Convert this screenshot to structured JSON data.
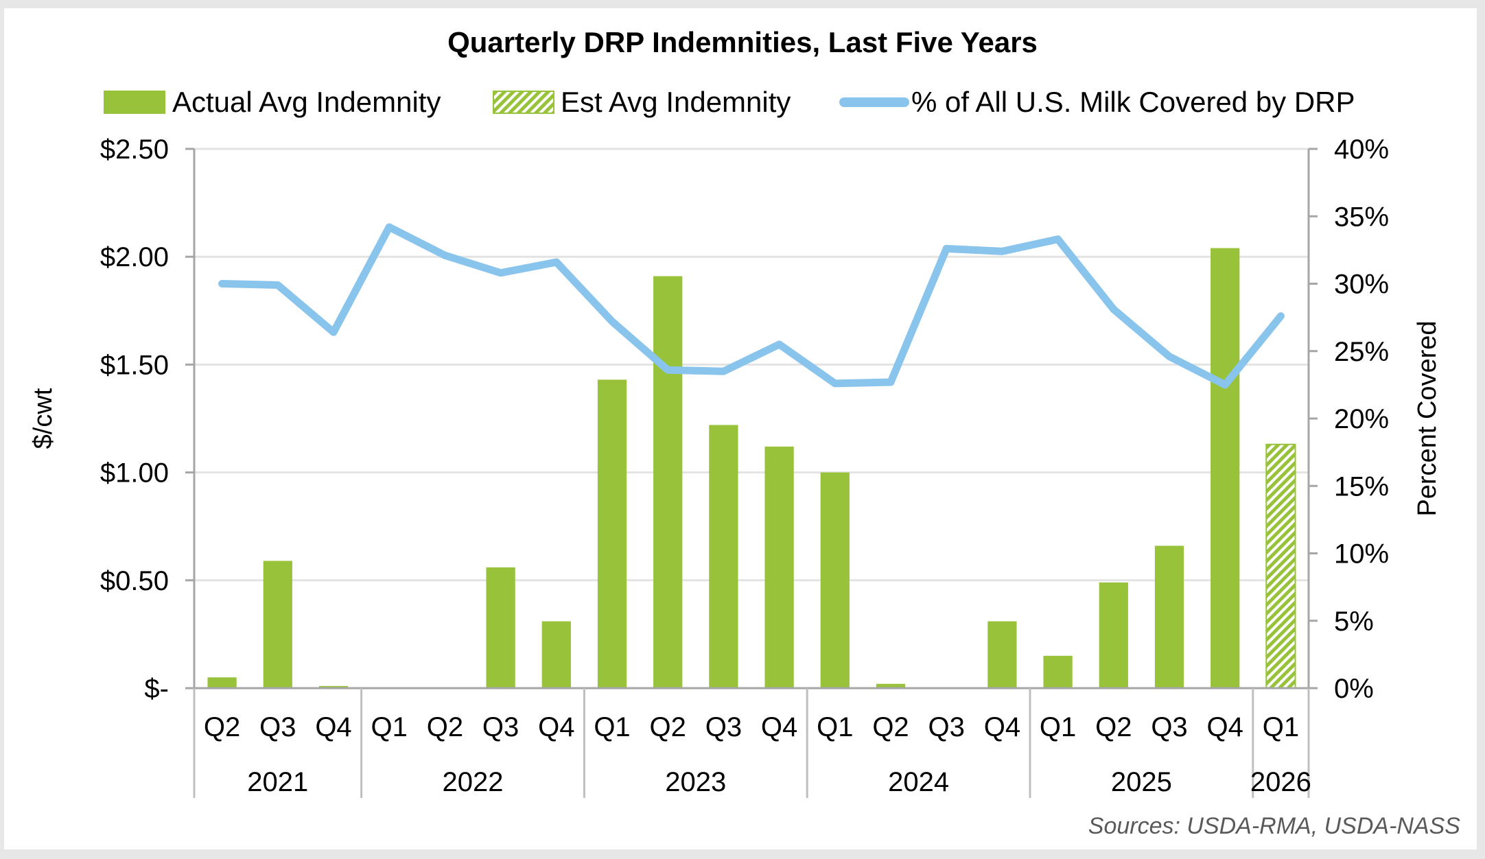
{
  "chart_data": {
    "type": "bar",
    "title": "Quarterly DRP Indemnities, Last Five Years",
    "ylabel": "$/cwt",
    "y2label": "Percent Covered",
    "ylim": [
      0,
      2.5
    ],
    "y2lim": [
      0,
      40
    ],
    "yticks": [
      "$-",
      "$0.50",
      "$1.00",
      "$1.50",
      "$2.00",
      "$2.50"
    ],
    "y2ticks": [
      "0%",
      "5%",
      "10%",
      "15%",
      "20%",
      "25%",
      "30%",
      "35%",
      "40%"
    ],
    "grid": true,
    "legend_position": "top",
    "categories": [
      "Q2",
      "Q3",
      "Q4",
      "Q1",
      "Q2",
      "Q3",
      "Q4",
      "Q1",
      "Q2",
      "Q3",
      "Q4",
      "Q1",
      "Q2",
      "Q3",
      "Q4",
      "Q1",
      "Q2",
      "Q3",
      "Q4",
      "Q1"
    ],
    "groups": [
      {
        "label": "2021",
        "count": 3
      },
      {
        "label": "2022",
        "count": 4
      },
      {
        "label": "2023",
        "count": 4
      },
      {
        "label": "2024",
        "count": 4
      },
      {
        "label": "2025",
        "count": 4
      },
      {
        "label": "2026",
        "count": 1
      }
    ],
    "series": [
      {
        "name": "Actual Avg Indemnity",
        "type": "bar",
        "color": "#97c23a",
        "axis": "left",
        "values": [
          0.05,
          0.59,
          0.01,
          0,
          0,
          0.56,
          0.31,
          1.43,
          1.91,
          1.22,
          1.12,
          1.0,
          0.02,
          0,
          0.31,
          0.15,
          0.49,
          0.66,
          2.04,
          null
        ]
      },
      {
        "name": "Est Avg Indemnity",
        "type": "bar",
        "pattern": "hatched",
        "color": "#97c23a",
        "axis": "left",
        "values": [
          null,
          null,
          null,
          null,
          null,
          null,
          null,
          null,
          null,
          null,
          null,
          null,
          null,
          null,
          null,
          null,
          null,
          null,
          null,
          1.13
        ]
      },
      {
        "name": "% of All U.S. Milk Covered by DRP",
        "type": "line",
        "color": "#89c4ec",
        "axis": "right",
        "values": [
          30.0,
          29.9,
          26.4,
          34.2,
          32.1,
          30.8,
          31.6,
          27.2,
          23.6,
          23.5,
          25.5,
          22.6,
          22.7,
          32.6,
          32.4,
          33.3,
          28.1,
          24.6,
          22.5,
          27.6
        ]
      }
    ],
    "source": "Sources: USDA-RMA, USDA-NASS"
  }
}
